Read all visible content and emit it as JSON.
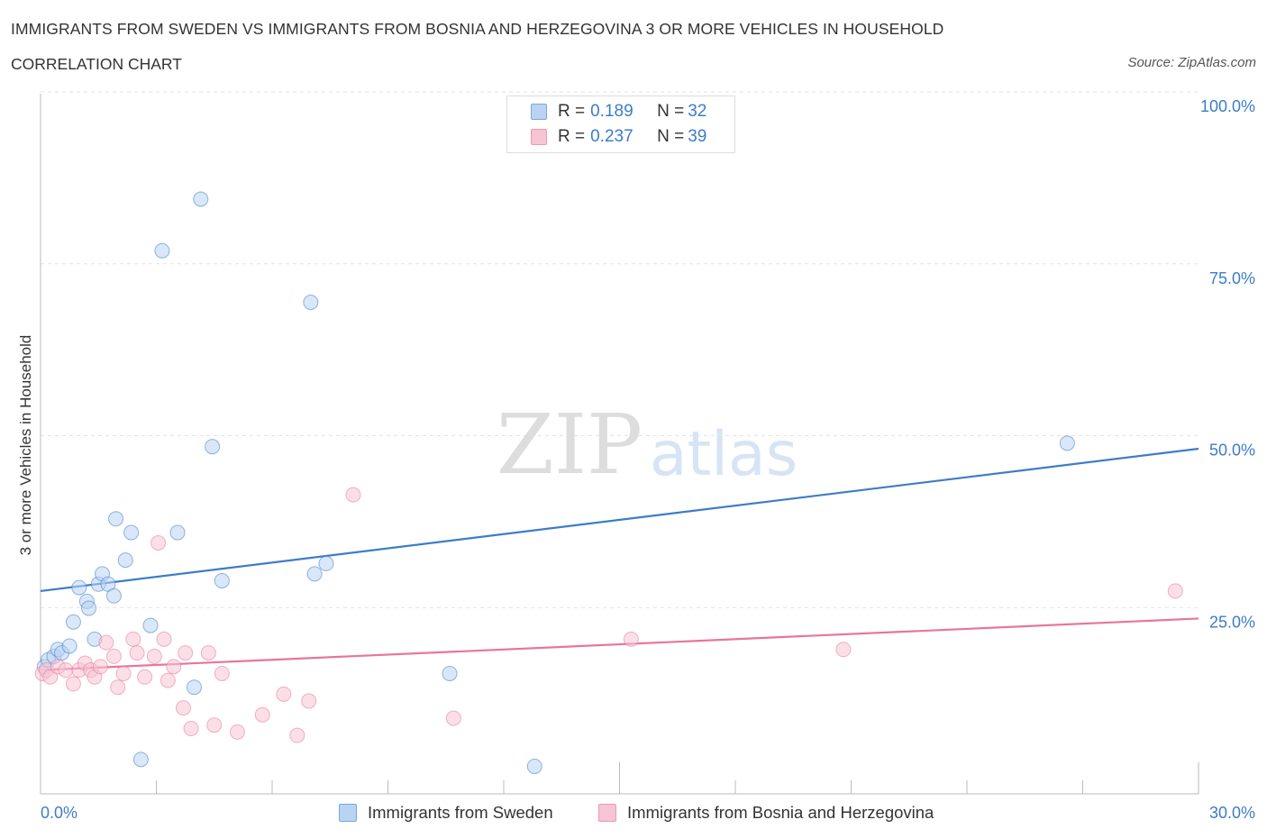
{
  "chart_data": {
    "type": "scatter",
    "title": "IMMIGRANTS FROM SWEDEN VS IMMIGRANTS FROM BOSNIA AND HERZEGOVINA 3 OR MORE VEHICLES IN HOUSEHOLD",
    "subtitle": "CORRELATION CHART",
    "source": "Source: ZipAtlas.com",
    "watermark_zip": "ZIP",
    "watermark_atlas": "atlas",
    "ylabel": "3 or more Vehicles in Household",
    "xlim": [
      0,
      30
    ],
    "ylim": [
      0,
      100
    ],
    "x_tick_labels": [
      "0.0%",
      "30.0%"
    ],
    "y_tick_labels": [
      "100.0%",
      "75.0%",
      "50.0%",
      "25.0%"
    ],
    "y_tick_values": [
      100,
      75,
      50,
      25
    ],
    "legend": [
      {
        "r_label": "R = ",
        "r_value": "0.189",
        "n_label": "N = ",
        "n_value": "32"
      },
      {
        "r_label": "R = ",
        "r_value": "0.237",
        "n_label": "N = ",
        "n_value": "39"
      }
    ],
    "series": [
      {
        "name": "Immigrants from Sweden",
        "color": "#3d7cc9",
        "fill": "#b9d3f3",
        "trend": {
          "x": [
            0,
            30
          ],
          "y": [
            29.5,
            50.2
          ]
        },
        "points": [
          [
            0.1,
            18.5
          ],
          [
            0.2,
            19.5
          ],
          [
            0.35,
            20.0
          ],
          [
            0.45,
            21.0
          ],
          [
            0.55,
            20.5
          ],
          [
            0.75,
            21.5
          ],
          [
            0.85,
            25.0
          ],
          [
            1.0,
            30.0
          ],
          [
            1.2,
            28.0
          ],
          [
            1.25,
            27.0
          ],
          [
            1.4,
            22.5
          ],
          [
            1.5,
            30.5
          ],
          [
            1.6,
            32.0
          ],
          [
            1.75,
            30.5
          ],
          [
            1.9,
            28.8
          ],
          [
            1.95,
            40.0
          ],
          [
            2.2,
            34.0
          ],
          [
            2.35,
            38.0
          ],
          [
            2.6,
            5.0
          ],
          [
            2.85,
            24.5
          ],
          [
            3.15,
            79.0
          ],
          [
            3.55,
            38.0
          ],
          [
            3.98,
            15.5
          ],
          [
            4.15,
            86.5
          ],
          [
            4.45,
            50.5
          ],
          [
            4.7,
            31.0
          ],
          [
            7.0,
            71.5
          ],
          [
            7.1,
            32.0
          ],
          [
            7.4,
            33.5
          ],
          [
            10.6,
            17.5
          ],
          [
            12.8,
            4.0
          ],
          [
            26.6,
            51.0
          ]
        ]
      },
      {
        "name": "Immigrants from Bosnia and Herzegovina",
        "color": "#e8759c",
        "fill": "#f7c4d4",
        "trend": {
          "x": [
            0,
            30
          ],
          "y": [
            18.0,
            25.5
          ]
        },
        "points": [
          [
            0.05,
            17.5
          ],
          [
            0.15,
            18.0
          ],
          [
            0.25,
            17.0
          ],
          [
            0.45,
            18.5
          ],
          [
            0.65,
            18.0
          ],
          [
            0.85,
            16.0
          ],
          [
            1.0,
            18.0
          ],
          [
            1.15,
            19.0
          ],
          [
            1.3,
            18.0
          ],
          [
            1.4,
            17.0
          ],
          [
            1.55,
            18.5
          ],
          [
            1.7,
            22.0
          ],
          [
            1.9,
            20.0
          ],
          [
            2.0,
            15.5
          ],
          [
            2.15,
            17.5
          ],
          [
            2.4,
            22.5
          ],
          [
            2.5,
            20.5
          ],
          [
            2.7,
            17.0
          ],
          [
            2.95,
            20.0
          ],
          [
            3.05,
            36.5
          ],
          [
            3.2,
            22.5
          ],
          [
            3.3,
            16.5
          ],
          [
            3.45,
            18.5
          ],
          [
            3.7,
            12.5
          ],
          [
            3.75,
            20.5
          ],
          [
            3.9,
            9.5
          ],
          [
            4.35,
            20.5
          ],
          [
            4.5,
            10.0
          ],
          [
            4.7,
            17.5
          ],
          [
            5.1,
            9.0
          ],
          [
            5.75,
            11.5
          ],
          [
            6.3,
            14.5
          ],
          [
            6.65,
            8.5
          ],
          [
            6.95,
            13.5
          ],
          [
            8.1,
            43.5
          ],
          [
            10.7,
            11.0
          ],
          [
            15.3,
            22.5
          ],
          [
            20.8,
            21.0
          ],
          [
            29.4,
            29.5
          ]
        ]
      }
    ]
  }
}
